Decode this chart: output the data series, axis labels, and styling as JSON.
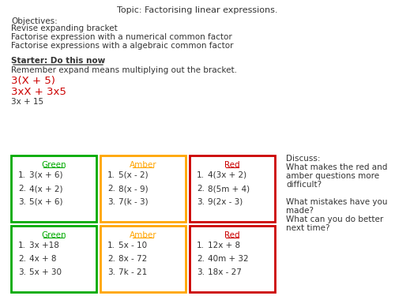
{
  "title": "Topic: Factorising linear expressions.",
  "objectives_label": "Objectives:",
  "objectives": [
    "Revise expanding bracket",
    "Factorise expression with a numerical common factor",
    "Factorise expressions with a algebraic common factor"
  ],
  "starter_label": "Starter: Do this now",
  "starter_body": "Remember expand means multiplying out the bracket.",
  "starter_red1": "3(X + 5)",
  "starter_red2": "3xX + 3x5",
  "starter_black": "3x + 15",
  "discuss_label": "Discuss:",
  "discuss_lines": [
    "What makes the red and",
    "amber questions more",
    "difficult?",
    "",
    "What mistakes have you",
    "made?",
    "What can you do better",
    "next time?"
  ],
  "green_color": "#00aa00",
  "amber_color": "#FFA500",
  "red_color": "#cc0000",
  "text_color": "#333333",
  "bg_color": "#ffffff",
  "box1": {
    "label": "Green",
    "color": "#00aa00",
    "items": [
      "3(x + 6)",
      "4(x + 2)",
      "5(x + 6)"
    ]
  },
  "box2": {
    "label": "Amber",
    "color": "#FFA500",
    "items": [
      "5(x - 2)",
      "8(x - 9)",
      "7(k - 3)"
    ]
  },
  "box3": {
    "label": "Red",
    "color": "#cc0000",
    "items": [
      "4(3x + 2)",
      "8(5m + 4)",
      "9(2x - 3)"
    ]
  },
  "box4": {
    "label": "Green",
    "color": "#00aa00",
    "items": [
      "3x +18",
      "4x + 8",
      "5x + 30"
    ]
  },
  "box5": {
    "label": "Amber",
    "color": "#FFA500",
    "items": [
      "5x - 10",
      "8x - 72",
      "7k - 21"
    ]
  },
  "box6": {
    "label": "Red",
    "color": "#cc0000",
    "items": [
      "12x + 8",
      "40m + 32",
      "18x - 27"
    ]
  }
}
